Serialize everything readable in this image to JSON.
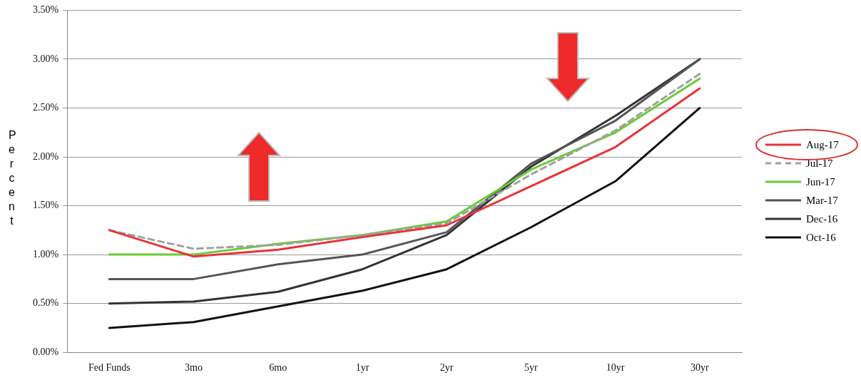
{
  "chart_data": {
    "type": "line",
    "ylabel": "Percent",
    "categories": [
      "Fed Funds",
      "3mo",
      "6mo",
      "1yr",
      "2yr",
      "5yr",
      "10yr",
      "30yr"
    ],
    "ylim": [
      0,
      3.5
    ],
    "yticks": [
      {
        "value": 0,
        "label": "0.00%"
      },
      {
        "value": 0.5,
        "label": "0.50%"
      },
      {
        "value": 1,
        "label": "1.00%"
      },
      {
        "value": 1.5,
        "label": "1.50%"
      },
      {
        "value": 2,
        "label": "2.00%"
      },
      {
        "value": 2.5,
        "label": "2.50%"
      },
      {
        "value": 3,
        "label": "3.00%"
      },
      {
        "value": 3.5,
        "label": "3.50%"
      }
    ],
    "grid": "y",
    "legend": "right",
    "marker": "none",
    "series": [
      {
        "name": "Aug-17",
        "color": "#e8343a",
        "values": [
          1.25,
          0.98,
          1.05,
          1.18,
          1.3,
          1.7,
          2.1,
          2.7
        ]
      },
      {
        "name": "Jul-17",
        "color": "#a0a0a0",
        "line_style": "dashed",
        "values": [
          1.25,
          1.06,
          1.1,
          1.2,
          1.32,
          1.82,
          2.27,
          2.85
        ]
      },
      {
        "name": "Jun-17",
        "color": "#66cc33",
        "values": [
          1,
          1,
          1.11,
          1.2,
          1.34,
          1.87,
          2.25,
          2.8
        ]
      },
      {
        "name": "Mar-17",
        "color": "#555555",
        "values": [
          0.75,
          0.75,
          0.9,
          1,
          1.23,
          1.93,
          2.37,
          3
        ]
      },
      {
        "name": "Dec-16",
        "color": "#333333",
        "values": [
          0.5,
          0.52,
          0.62,
          0.85,
          1.2,
          1.9,
          2.42,
          3
        ]
      },
      {
        "name": "Oct-16",
        "color": "#111111",
        "values": [
          0.25,
          0.31,
          0.47,
          0.63,
          0.85,
          1.28,
          1.75,
          2.5
        ]
      }
    ]
  }
}
